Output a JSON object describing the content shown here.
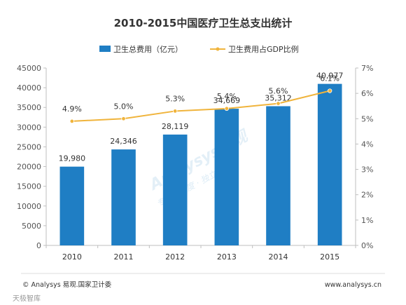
{
  "chart_data": {
    "type": "bar",
    "title": "2010-2015中国医疗卫生总支出统计",
    "categories": [
      "2010",
      "2011",
      "2012",
      "2013",
      "2014",
      "2015"
    ],
    "series": [
      {
        "name": "卫生总费用（亿元）",
        "type": "bar",
        "axis": "left",
        "values": [
          19980,
          24346,
          28119,
          34669,
          35312,
          40977
        ],
        "labels": [
          "19,980",
          "24,346",
          "28,119",
          "34,669",
          "35,312",
          "40,977"
        ],
        "color": "#1f7ec4"
      },
      {
        "name": "卫生费用占GDP比例",
        "type": "line",
        "axis": "right",
        "values": [
          4.9,
          5.0,
          5.3,
          5.4,
          5.6,
          6.1
        ],
        "labels": [
          "4.9%",
          "5.0%",
          "5.3%",
          "5.4%",
          "5.6%",
          "6.1%"
        ],
        "color": "#f0b43c"
      }
    ],
    "ylim": [
      0,
      45000
    ],
    "y2lim": [
      0,
      7
    ],
    "yticks": [
      "0",
      "5000",
      "10000",
      "15000",
      "20000",
      "25000",
      "30000",
      "35000",
      "40000",
      "45000"
    ],
    "y2ticks": [
      "0%",
      "1%",
      "2%",
      "3%",
      "4%",
      "5%",
      "6%",
      "7%"
    ],
    "legend_position": "top",
    "grid": false
  },
  "footer": {
    "source": "© Analysys 易观.国家卫计委",
    "url": "www.analysys.cn"
  },
  "watermark": {
    "text": "Analysys易观",
    "sub": "专业 · 深度 · 独立",
    "corner": "天极智库"
  }
}
